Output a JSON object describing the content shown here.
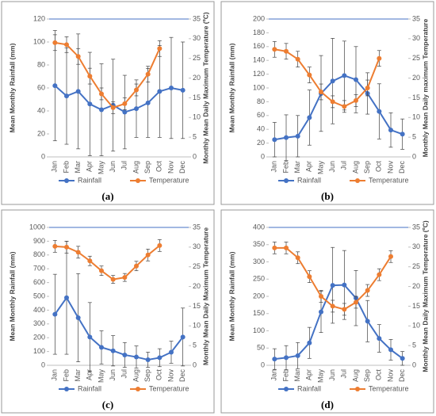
{
  "chart_data": [
    {
      "type": "line",
      "label": "(a)",
      "y_label": "Mean Monthly Rainfall (mm)",
      "y2_label": "Monthly Mean Daily Maximum Temperature (ºC)",
      "categories": [
        "Jan",
        "Feb",
        "Mar",
        "Apr",
        "May",
        "Jun",
        "Jul",
        "Aug",
        "Sep",
        "Oct",
        "Nov",
        "Dec"
      ],
      "ylim": [
        0,
        120
      ],
      "yticks": [
        0,
        20,
        40,
        60,
        80,
        100,
        120
      ],
      "y2lim": [
        0,
        35
      ],
      "y2ticks": [
        0,
        5,
        10,
        15,
        20,
        25,
        30,
        35
      ],
      "legend": "bottom",
      "series": [
        {
          "name": "Rainfall",
          "color": "#4472c4",
          "axis": "y",
          "values": [
            62,
            53,
            57,
            46,
            41,
            45,
            39,
            42,
            47,
            57,
            60,
            58
          ],
          "errors": [
            48,
            42,
            50,
            45,
            40,
            40,
            32,
            25,
            30,
            40,
            44,
            42
          ]
        },
        {
          "name": "Temperature",
          "color": "#ed7d31",
          "axis": "y2",
          "values": [
            29,
            28.5,
            25.5,
            20.5,
            16,
            12.5,
            13.5,
            17,
            21,
            27.5,
            null,
            null
          ],
          "errors": [
            2,
            2,
            2,
            2,
            1.5,
            1.5,
            1.5,
            1.5,
            2,
            2,
            null,
            null
          ]
        }
      ]
    },
    {
      "type": "line",
      "label": "(b)",
      "y_label": "Mean Monthly Rainfall (mm)",
      "y2_label": "Monthly Mean Daily maximum Temperature",
      "categories": [
        "Jan",
        "Feb",
        "Mar",
        "Apr",
        "May",
        "Jun",
        "Jul",
        "Aug",
        "Sep",
        "Oct",
        "Nov",
        "Dec"
      ],
      "ylim": [
        0,
        200
      ],
      "yticks": [
        0,
        20,
        40,
        60,
        80,
        100,
        120,
        140,
        160,
        180,
        200
      ],
      "y2lim": [
        0,
        35
      ],
      "y2ticks": [
        0,
        5,
        10,
        15,
        20,
        25,
        30,
        35
      ],
      "legend": "bottom",
      "series": [
        {
          "name": "Rainfall",
          "color": "#4472c4",
          "axis": "y",
          "values": [
            25,
            28,
            30,
            57,
            92,
            110,
            118,
            112,
            92,
            66,
            39,
            33
          ],
          "errors": [
            25,
            33,
            30,
            40,
            55,
            62,
            50,
            48,
            30,
            40,
            25,
            22
          ]
        },
        {
          "name": "Temperature",
          "color": "#ed7d31",
          "axis": "y2",
          "values": [
            27.3,
            26.8,
            24.8,
            20.8,
            16.5,
            14,
            12.8,
            14.3,
            17.5,
            25,
            null,
            null
          ],
          "errors": [
            2,
            2,
            2,
            2,
            2,
            1.5,
            1.5,
            1.5,
            2,
            2,
            null,
            null
          ]
        }
      ]
    },
    {
      "type": "line",
      "label": "(c)",
      "y_label": "Mean Monthly Rainfall (mm)",
      "y2_label": "Monthly Mean Daily Maximum Temperature",
      "categories": [
        "Jan",
        "Feb",
        "Mar",
        "Apr",
        "May",
        "Jun",
        "Jul",
        "Aug",
        "Sep",
        "Oct",
        "Nov",
        "Dec"
      ],
      "ylim": [
        0,
        1000
      ],
      "yticks": [
        0,
        100,
        200,
        300,
        400,
        500,
        600,
        700,
        800,
        900,
        1000
      ],
      "y2lim": [
        0,
        35
      ],
      "y2ticks": [
        0,
        5,
        10,
        15,
        20,
        25,
        30,
        35
      ],
      "legend": "bottom",
      "series": [
        {
          "name": "Rainfall",
          "color": "#4472c4",
          "axis": "y",
          "values": [
            370,
            490,
            345,
            205,
            130,
            105,
            75,
            60,
            40,
            55,
            95,
            205
          ],
          "errors": [
            290,
            410,
            320,
            250,
            120,
            110,
            90,
            80,
            55,
            65,
            80,
            210
          ]
        },
        {
          "name": "Temperature",
          "color": "#ed7d31",
          "axis": "y2",
          "values": [
            30.2,
            30,
            28.7,
            26.5,
            24,
            21.8,
            22.3,
            25.2,
            28,
            30.4,
            null,
            null
          ],
          "errors": [
            1.5,
            1.5,
            1.5,
            1.2,
            1.2,
            1,
            1,
            1.2,
            1.5,
            1.5,
            null,
            null
          ]
        }
      ]
    },
    {
      "type": "line",
      "label": "(d)",
      "y_label": "Mean Monthly Rainfall (mm)",
      "y2_label": "Monthly Mean Daily Maximum Temperature (ºC)",
      "categories": [
        "Jan",
        "Feb",
        "Mar",
        "Apr",
        "May",
        "Jun",
        "Jul",
        "Aug",
        "Sep",
        "Oct",
        "Nov",
        "Dec"
      ],
      "ylim": [
        0,
        400
      ],
      "yticks": [
        0,
        50,
        100,
        150,
        200,
        250,
        300,
        350,
        400
      ],
      "y2lim": [
        0,
        35
      ],
      "y2ticks": [
        0,
        5,
        10,
        15,
        20,
        25,
        30,
        35
      ],
      "legend": "bottom",
      "series": [
        {
          "name": "Rainfall",
          "color": "#4472c4",
          "axis": "y",
          "values": [
            18,
            22,
            28,
            65,
            155,
            232,
            233,
            195,
            128,
            78,
            45,
            20
          ],
          "errors": [
            30,
            35,
            38,
            45,
            60,
            110,
            100,
            80,
            60,
            40,
            30,
            20
          ]
        },
        {
          "name": "Temperature",
          "color": "#ed7d31",
          "axis": "y2",
          "values": [
            29.8,
            29.8,
            27.3,
            22.5,
            17.5,
            15,
            14.2,
            16,
            19,
            23,
            27.6,
            null
          ],
          "errors": [
            1.5,
            1.5,
            1.5,
            1.5,
            1.5,
            1.5,
            1.5,
            1.5,
            1.5,
            1.5,
            1.5,
            null
          ]
        }
      ]
    }
  ]
}
